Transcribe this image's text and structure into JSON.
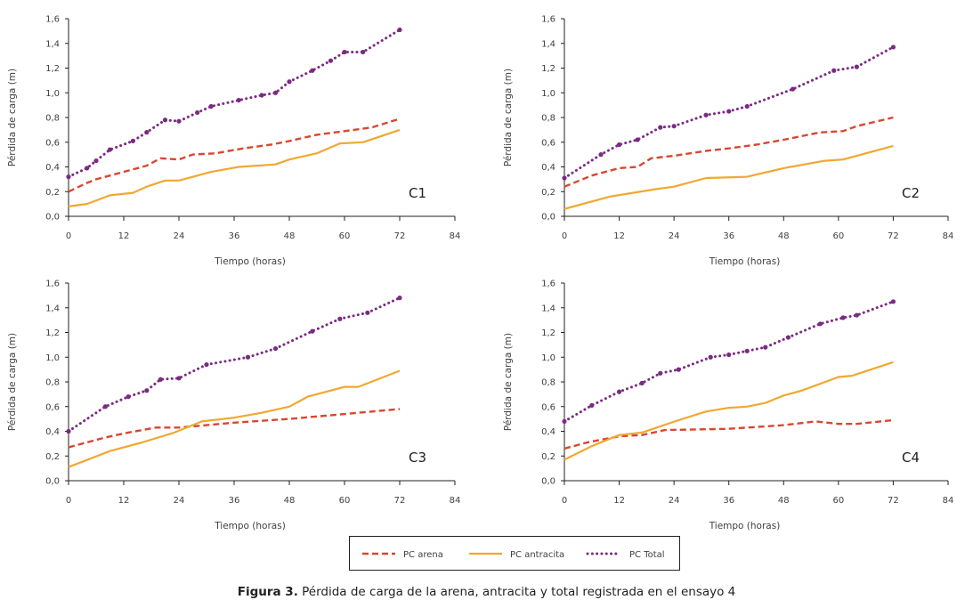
{
  "caption": {
    "label": "Figura 3.",
    "text": " Pérdida de carga de la arena, antracita y total registrada en el ensayo 4"
  },
  "legend": [
    {
      "key": "arena",
      "label": "PC arena",
      "color": "#D9472F",
      "style": "dashed"
    },
    {
      "key": "antracita",
      "label": "PC antracita",
      "color": "#F0A830",
      "style": "solid"
    },
    {
      "key": "total",
      "label": "PC Total",
      "color": "#7B2A83",
      "style": "dotted"
    }
  ],
  "chart_data": [
    {
      "type": "line",
      "panel": "C1",
      "xlabel": "Tiempo (horas)",
      "ylabel": "Pérdida de carga (m)",
      "xlim": [
        0,
        84
      ],
      "ylim": [
        0,
        1.6
      ],
      "xticks": [
        "0",
        "12",
        "24",
        "36",
        "48",
        "60",
        "72",
        "84"
      ],
      "yticks": [
        "0,0",
        "0,2",
        "0,4",
        "0,6",
        "0,8",
        "1,0",
        "1,2",
        "1,4",
        "1,6"
      ],
      "grid": false,
      "series": [
        {
          "name": "PC arena",
          "key": "arena",
          "x": [
            0,
            4,
            6,
            10,
            14,
            17,
            20,
            24,
            27,
            32,
            38,
            44,
            48,
            54,
            60,
            66,
            72
          ],
          "y": [
            0.2,
            0.27,
            0.3,
            0.34,
            0.38,
            0.41,
            0.47,
            0.46,
            0.5,
            0.51,
            0.55,
            0.58,
            0.61,
            0.66,
            0.69,
            0.72,
            0.79
          ]
        },
        {
          "name": "PC antracita",
          "key": "antracita",
          "x": [
            0,
            4,
            9,
            14,
            17,
            21,
            24,
            31,
            37,
            45,
            48,
            54,
            59,
            64,
            72
          ],
          "y": [
            0.08,
            0.1,
            0.17,
            0.19,
            0.24,
            0.29,
            0.29,
            0.36,
            0.4,
            0.42,
            0.46,
            0.51,
            0.59,
            0.6,
            0.7
          ]
        },
        {
          "name": "PC Total",
          "key": "total",
          "x": [
            0,
            4,
            6,
            9,
            14,
            17,
            21,
            24,
            28,
            31,
            37,
            42,
            45,
            48,
            53,
            57,
            60,
            64,
            72
          ],
          "y": [
            0.32,
            0.39,
            0.45,
            0.54,
            0.61,
            0.68,
            0.78,
            0.77,
            0.84,
            0.89,
            0.94,
            0.98,
            1.0,
            1.09,
            1.18,
            1.26,
            1.33,
            1.33,
            1.51
          ]
        }
      ]
    },
    {
      "type": "line",
      "panel": "C2",
      "xlabel": "Tiempo (horas)",
      "ylabel": "Pérdida de carga (m)",
      "xlim": [
        0,
        84
      ],
      "ylim": [
        0,
        1.6
      ],
      "xticks": [
        "0",
        "12",
        "24",
        "36",
        "48",
        "60",
        "72",
        "84"
      ],
      "yticks": [
        "0,0",
        "0,2",
        "0,4",
        "0,6",
        "0,8",
        "1,0",
        "1,2",
        "1,4",
        "1,6"
      ],
      "grid": false,
      "series": [
        {
          "name": "PC arena",
          "key": "arena",
          "x": [
            0,
            6,
            12,
            16,
            19,
            24,
            31,
            36,
            42,
            48,
            56,
            61,
            64,
            72
          ],
          "y": [
            0.24,
            0.33,
            0.39,
            0.4,
            0.47,
            0.49,
            0.53,
            0.55,
            0.58,
            0.62,
            0.68,
            0.69,
            0.73,
            0.8
          ]
        },
        {
          "name": "PC antracita",
          "key": "antracita",
          "x": [
            0,
            10,
            20,
            24,
            31,
            40,
            48,
            57,
            61,
            72
          ],
          "y": [
            0.06,
            0.16,
            0.22,
            0.24,
            0.31,
            0.32,
            0.39,
            0.45,
            0.46,
            0.57
          ]
        },
        {
          "name": "PC Total",
          "key": "total",
          "x": [
            0,
            8,
            12,
            16,
            21,
            24,
            31,
            36,
            40,
            50,
            59,
            64,
            72
          ],
          "y": [
            0.31,
            0.5,
            0.58,
            0.62,
            0.72,
            0.73,
            0.82,
            0.85,
            0.89,
            1.03,
            1.18,
            1.21,
            1.37
          ]
        }
      ]
    },
    {
      "type": "line",
      "panel": "C3",
      "xlabel": "Tiempo (horas)",
      "ylabel": "Pérdida de carga (m)",
      "xlim": [
        0,
        84
      ],
      "ylim": [
        0,
        1.6
      ],
      "xticks": [
        "0",
        "12",
        "24",
        "36",
        "48",
        "60",
        "72",
        "84"
      ],
      "yticks": [
        "0,0",
        "0,2",
        "0,4",
        "0,6",
        "0,8",
        "1,0",
        "1,2",
        "1,4",
        "1,6"
      ],
      "grid": false,
      "series": [
        {
          "name": "PC arena",
          "key": "arena",
          "x": [
            0,
            8,
            13,
            19,
            24,
            30,
            36,
            48,
            60,
            66,
            72
          ],
          "y": [
            0.27,
            0.35,
            0.39,
            0.43,
            0.43,
            0.45,
            0.47,
            0.5,
            0.54,
            0.56,
            0.58
          ]
        },
        {
          "name": "PC antracita",
          "key": "antracita",
          "x": [
            0,
            9,
            16,
            23,
            29,
            36,
            42,
            48,
            52,
            60,
            63,
            72
          ],
          "y": [
            0.11,
            0.24,
            0.31,
            0.39,
            0.48,
            0.51,
            0.55,
            0.6,
            0.68,
            0.76,
            0.76,
            0.89
          ]
        },
        {
          "name": "PC Total",
          "key": "total",
          "x": [
            0,
            8,
            13,
            17,
            20,
            24,
            30,
            39,
            45,
            53,
            59,
            65,
            72
          ],
          "y": [
            0.4,
            0.6,
            0.68,
            0.73,
            0.82,
            0.83,
            0.94,
            1.0,
            1.07,
            1.21,
            1.31,
            1.36,
            1.48
          ]
        }
      ]
    },
    {
      "type": "line",
      "panel": "C4",
      "xlabel": "Tiempo (horas)",
      "ylabel": "Pérdida de carga (m)",
      "xlim": [
        0,
        84
      ],
      "ylim": [
        0,
        1.6
      ],
      "xticks": [
        "0",
        "12",
        "24",
        "36",
        "48",
        "60",
        "72",
        "84"
      ],
      "yticks": [
        "0,0",
        "0,2",
        "0,4",
        "0,6",
        "0,8",
        "1,0",
        "1,2",
        "1,4",
        "1,6"
      ],
      "grid": false,
      "series": [
        {
          "name": "PC arena",
          "key": "arena",
          "x": [
            0,
            5,
            12,
            17,
            22,
            36,
            48,
            55,
            60,
            64,
            72
          ],
          "y": [
            0.26,
            0.31,
            0.36,
            0.37,
            0.41,
            0.42,
            0.45,
            0.48,
            0.46,
            0.46,
            0.49
          ]
        },
        {
          "name": "PC antracita",
          "key": "antracita",
          "x": [
            0,
            6,
            12,
            17,
            25,
            31,
            36,
            40,
            44,
            48,
            52,
            60,
            63,
            72
          ],
          "y": [
            0.17,
            0.28,
            0.37,
            0.39,
            0.49,
            0.56,
            0.59,
            0.6,
            0.63,
            0.69,
            0.73,
            0.84,
            0.85,
            0.96
          ]
        },
        {
          "name": "PC Total",
          "key": "total",
          "x": [
            0,
            6,
            12,
            17,
            21,
            25,
            32,
            36,
            40,
            44,
            49,
            56,
            61,
            64,
            72
          ],
          "y": [
            0.48,
            0.61,
            0.72,
            0.79,
            0.87,
            0.9,
            1.0,
            1.02,
            1.05,
            1.08,
            1.16,
            1.27,
            1.32,
            1.34,
            1.45
          ]
        }
      ]
    }
  ]
}
